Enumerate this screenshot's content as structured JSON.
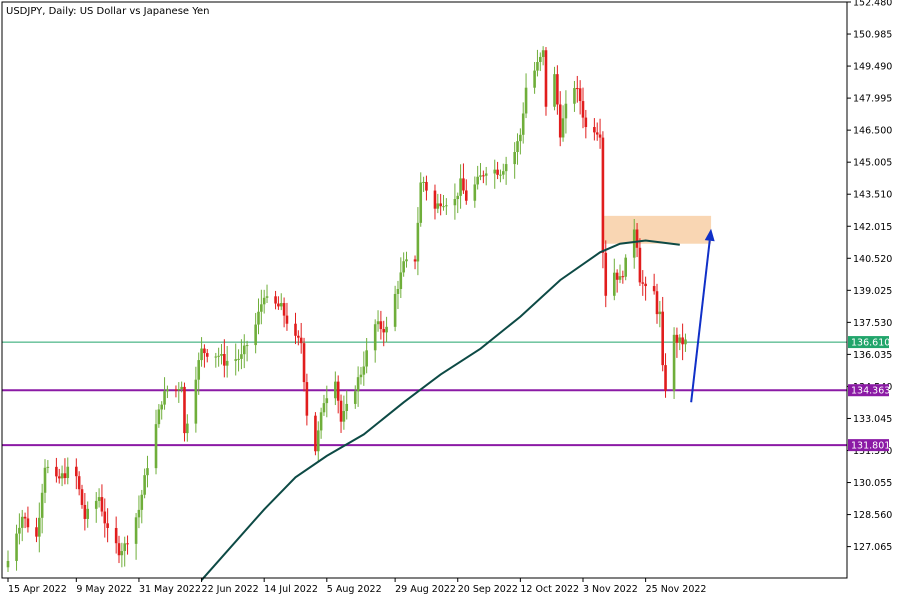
{
  "chart_title": "USDJPY, Daily:  US Dollar vs Japanese Yen",
  "colors": {
    "bull": "#6fae3a",
    "bear": "#e11d1d",
    "ma_line": "#0d4a45",
    "current_price_line": "#21a56b",
    "support_line": "#8b1aa5",
    "supply_zone": "#f9d6b3",
    "arrow": "#1030c8",
    "frame": "#000000"
  },
  "chart_data": {
    "type": "candlestick",
    "title": "USDJPY, Daily:  US Dollar vs Japanese Yen",
    "x_range": [
      "2022-04-15",
      "2022-12-12"
    ],
    "y_range": [
      125.6,
      152.48
    ],
    "y_ticks": [
      "152.480",
      "150.985",
      "149.490",
      "147.995",
      "146.500",
      "145.005",
      "143.510",
      "142.015",
      "140.520",
      "139.025",
      "137.530",
      "136.035",
      "134.540",
      "133.045",
      "131.550",
      "130.055",
      "128.560",
      "127.065"
    ],
    "x_ticks": [
      {
        "date": "2022-04-15",
        "label": "15 Apr 2022"
      },
      {
        "date": "2022-05-09",
        "label": "9 May 2022"
      },
      {
        "date": "2022-05-31",
        "label": "31 May 2022"
      },
      {
        "date": "2022-06-22",
        "label": "22 Jun 2022"
      },
      {
        "date": "2022-07-14",
        "label": "14 Jul 2022"
      },
      {
        "date": "2022-08-05",
        "label": "5 Aug 2022"
      },
      {
        "date": "2022-08-29",
        "label": "29 Aug 2022"
      },
      {
        "date": "2022-09-20",
        "label": "20 Sep 2022"
      },
      {
        "date": "2022-10-12",
        "label": "12 Oct 2022"
      },
      {
        "date": "2022-11-03",
        "label": "3 Nov 2022"
      },
      {
        "date": "2022-11-25",
        "label": "25 Nov 2022"
      }
    ],
    "close_anchors": [
      [
        "2022-04-15",
        126.4
      ],
      [
        "2022-04-18",
        127.8
      ],
      [
        "2022-04-20",
        128.5
      ],
      [
        "2022-04-25",
        127.5
      ],
      [
        "2022-04-28",
        130.9
      ],
      [
        "2022-05-02",
        130.1
      ],
      [
        "2022-05-06",
        130.6
      ],
      [
        "2022-05-09",
        130.3
      ],
      [
        "2022-05-12",
        128.4
      ],
      [
        "2022-05-17",
        129.4
      ],
      [
        "2022-05-20",
        127.7
      ],
      [
        "2022-05-24",
        126.9
      ],
      [
        "2022-05-26",
        127.1
      ],
      [
        "2022-05-31",
        128.8
      ],
      [
        "2022-06-03",
        130.9
      ],
      [
        "2022-06-08",
        133.9
      ],
      [
        "2022-06-10",
        134.4
      ],
      [
        "2022-06-13",
        134.4
      ],
      [
        "2022-06-15",
        134.7
      ],
      [
        "2022-06-16",
        132.3
      ],
      [
        "2022-06-20",
        135.1
      ],
      [
        "2022-06-22",
        136.2
      ],
      [
        "2022-06-28",
        136.0
      ],
      [
        "2022-06-30",
        135.7
      ],
      [
        "2022-07-06",
        135.9
      ],
      [
        "2022-07-11",
        137.4
      ],
      [
        "2022-07-14",
        138.9
      ],
      [
        "2022-07-15",
        138.5
      ],
      [
        "2022-07-20",
        138.2
      ],
      [
        "2022-07-25",
        136.7
      ],
      [
        "2022-07-27",
        136.6
      ],
      [
        "2022-07-29",
        133.3
      ],
      [
        "2022-08-01",
        131.6
      ],
      [
        "2022-08-04",
        133.9
      ],
      [
        "2022-08-08",
        135.0
      ],
      [
        "2022-08-10",
        132.9
      ],
      [
        "2022-08-12",
        133.5
      ],
      [
        "2022-08-17",
        135.2
      ],
      [
        "2022-08-22",
        137.4
      ],
      [
        "2022-08-26",
        137.2
      ],
      [
        "2022-08-29",
        138.8
      ],
      [
        "2022-09-01",
        140.2
      ],
      [
        "2022-09-05",
        140.5
      ],
      [
        "2022-09-07",
        144.0
      ],
      [
        "2022-09-08",
        144.1
      ],
      [
        "2022-09-12",
        142.8
      ],
      [
        "2022-09-14",
        143.2
      ],
      [
        "2022-09-19",
        143.2
      ],
      [
        "2022-09-21",
        144.0
      ],
      [
        "2022-09-23",
        143.3
      ],
      [
        "2022-09-28",
        144.3
      ],
      [
        "2022-09-30",
        144.7
      ],
      [
        "2022-10-05",
        144.6
      ],
      [
        "2022-10-10",
        145.5
      ],
      [
        "2022-10-12",
        146.3
      ],
      [
        "2022-10-14",
        148.5
      ],
      [
        "2022-10-19",
        149.8
      ],
      [
        "2022-10-20",
        150.1
      ],
      [
        "2022-10-21",
        147.7
      ],
      [
        "2022-10-24",
        149.0
      ],
      [
        "2022-10-26",
        146.4
      ],
      [
        "2022-10-28",
        147.5
      ],
      [
        "2022-10-31",
        148.6
      ],
      [
        "2022-11-02",
        147.9
      ],
      [
        "2022-11-04",
        146.6
      ],
      [
        "2022-11-07",
        146.6
      ],
      [
        "2022-11-09",
        146.4
      ],
      [
        "2022-11-10",
        140.9
      ],
      [
        "2022-11-11",
        138.9
      ],
      [
        "2022-11-14",
        139.9
      ],
      [
        "2022-11-16",
        139.5
      ],
      [
        "2022-11-18",
        140.3
      ],
      [
        "2022-11-21",
        142.0
      ],
      [
        "2022-11-22",
        141.2
      ],
      [
        "2022-11-23",
        139.6
      ],
      [
        "2022-11-25",
        139.0
      ],
      [
        "2022-11-28",
        138.9
      ],
      [
        "2022-11-29",
        138.1
      ],
      [
        "2022-11-30",
        137.9
      ],
      [
        "2022-12-01",
        135.3
      ],
      [
        "2022-12-02",
        134.5
      ],
      [
        "2022-12-05",
        136.8
      ],
      [
        "2022-12-07",
        136.6
      ],
      [
        "2022-12-09",
        136.6
      ]
    ],
    "moving_average_anchors": [
      [
        "2022-06-22",
        125.5
      ],
      [
        "2022-07-14",
        128.8
      ],
      [
        "2022-07-25",
        130.3
      ],
      [
        "2022-08-05",
        131.3
      ],
      [
        "2022-08-18",
        132.3
      ],
      [
        "2022-09-01",
        133.8
      ],
      [
        "2022-09-14",
        135.1
      ],
      [
        "2022-09-28",
        136.3
      ],
      [
        "2022-10-12",
        137.8
      ],
      [
        "2022-10-26",
        139.5
      ],
      [
        "2022-11-09",
        140.8
      ],
      [
        "2022-11-16",
        141.2
      ],
      [
        "2022-11-25",
        141.35
      ],
      [
        "2022-12-07",
        141.15
      ]
    ],
    "current_price": {
      "value": 136.61,
      "label": "136.610"
    },
    "horizontal_levels": [
      {
        "value": 134.363,
        "label": "134.363"
      },
      {
        "value": 131.801,
        "label": "131.801"
      }
    ],
    "supply_zone": {
      "start": "2022-11-10",
      "end": "2022-12-18",
      "low": 141.2,
      "high": 142.5
    },
    "projection_arrow": {
      "from": [
        "2022-12-11",
        133.8
      ],
      "to": [
        "2022-12-18",
        141.9
      ]
    }
  }
}
